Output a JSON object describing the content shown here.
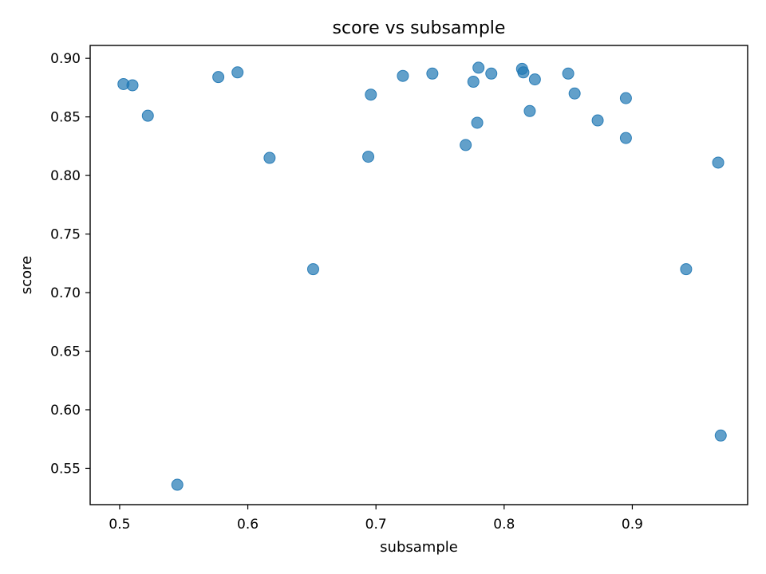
{
  "chart_data": {
    "type": "scatter",
    "title": "score vs subsample",
    "xlabel": "subsample",
    "ylabel": "score",
    "xlim": [
      0.477,
      0.99
    ],
    "ylim": [
      0.519,
      0.911
    ],
    "x_ticks": [
      0.5,
      0.6,
      0.7,
      0.8,
      0.9
    ],
    "x_tick_labels": [
      "0.5",
      "0.6",
      "0.7",
      "0.8",
      "0.9"
    ],
    "y_ticks": [
      0.55,
      0.6,
      0.65,
      0.7,
      0.75,
      0.8,
      0.85,
      0.9
    ],
    "y_tick_labels": [
      "0.55",
      "0.60",
      "0.65",
      "0.70",
      "0.75",
      "0.80",
      "0.85",
      "0.90"
    ],
    "grid": false,
    "marker_color": "#1f77b4",
    "marker_opacity": 0.7,
    "points": [
      {
        "x": 0.503,
        "y": 0.878
      },
      {
        "x": 0.51,
        "y": 0.877
      },
      {
        "x": 0.522,
        "y": 0.851
      },
      {
        "x": 0.545,
        "y": 0.536
      },
      {
        "x": 0.577,
        "y": 0.884
      },
      {
        "x": 0.592,
        "y": 0.888
      },
      {
        "x": 0.617,
        "y": 0.815
      },
      {
        "x": 0.651,
        "y": 0.72
      },
      {
        "x": 0.694,
        "y": 0.816
      },
      {
        "x": 0.696,
        "y": 0.869
      },
      {
        "x": 0.721,
        "y": 0.885
      },
      {
        "x": 0.744,
        "y": 0.887
      },
      {
        "x": 0.77,
        "y": 0.826
      },
      {
        "x": 0.776,
        "y": 0.88
      },
      {
        "x": 0.779,
        "y": 0.845
      },
      {
        "x": 0.78,
        "y": 0.892
      },
      {
        "x": 0.79,
        "y": 0.887
      },
      {
        "x": 0.814,
        "y": 0.891
      },
      {
        "x": 0.815,
        "y": 0.888
      },
      {
        "x": 0.82,
        "y": 0.855
      },
      {
        "x": 0.824,
        "y": 0.882
      },
      {
        "x": 0.85,
        "y": 0.887
      },
      {
        "x": 0.855,
        "y": 0.87
      },
      {
        "x": 0.873,
        "y": 0.847
      },
      {
        "x": 0.895,
        "y": 0.866
      },
      {
        "x": 0.895,
        "y": 0.832
      },
      {
        "x": 0.942,
        "y": 0.72
      },
      {
        "x": 0.967,
        "y": 0.811
      },
      {
        "x": 0.969,
        "y": 0.578
      }
    ]
  }
}
